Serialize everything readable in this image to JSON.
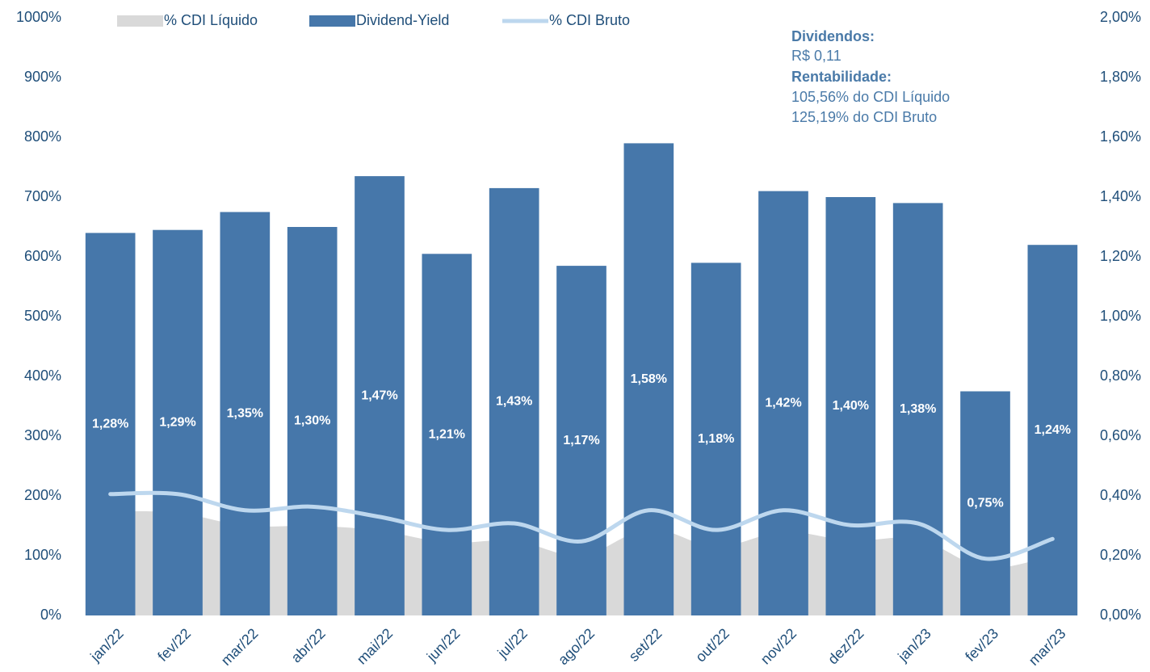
{
  "chart_data": {
    "type": "combo",
    "categories": [
      "jan/22",
      "fev/22",
      "mar/22",
      "abr/22",
      "mai/22",
      "jun/22",
      "jul/22",
      "ago/22",
      "set/22",
      "out/22",
      "nov/22",
      "dez/22",
      "jan/23",
      "fev/23",
      "mar/23"
    ],
    "series": [
      {
        "name": "% CDI Líquido",
        "type": "area",
        "color": "#d9d9d9",
        "values": [
          174,
          172,
          150,
          150,
          142,
          122,
          125,
          100,
          145,
          115,
          140,
          125,
          128,
          80,
          100
        ]
      },
      {
        "name": "Dividend-Yield",
        "type": "bar",
        "axis": "y2",
        "color": "#4677aa",
        "values": [
          1.28,
          1.29,
          1.35,
          1.3,
          1.47,
          1.21,
          1.43,
          1.17,
          1.58,
          1.18,
          1.42,
          1.4,
          1.38,
          0.75,
          1.24
        ],
        "value_labels": [
          "1,28%",
          "1,29%",
          "1,35%",
          "1,30%",
          "1,47%",
          "1,21%",
          "1,43%",
          "1,17%",
          "1,58%",
          "1,18%",
          "1,42%",
          "1,40%",
          "1,38%",
          "0,75%",
          "1,24%"
        ]
      },
      {
        "name": "% CDI Bruto",
        "type": "line",
        "color": "#bdd7ee",
        "values": [
          203,
          203,
          176,
          182,
          165,
          143,
          154,
          124,
          176,
          143,
          176,
          151,
          154,
          95,
          128
        ]
      }
    ],
    "ylim": [
      0,
      1000
    ],
    "yticks": [
      {
        "value": 0,
        "label": "0%"
      },
      {
        "value": 100,
        "label": "100%"
      },
      {
        "value": 200,
        "label": "200%"
      },
      {
        "value": 300,
        "label": "300%"
      },
      {
        "value": 400,
        "label": "400%"
      },
      {
        "value": 500,
        "label": "500%"
      },
      {
        "value": 600,
        "label": "600%"
      },
      {
        "value": 700,
        "label": "700%"
      },
      {
        "value": 800,
        "label": "800%"
      },
      {
        "value": 900,
        "label": "900%"
      },
      {
        "value": 1000,
        "label": "1000%"
      }
    ],
    "y2lim": [
      0,
      2
    ],
    "y2ticks": [
      {
        "value": 0,
        "label": "0,00%"
      },
      {
        "value": 0.2,
        "label": "0,20%"
      },
      {
        "value": 0.4,
        "label": "0,40%"
      },
      {
        "value": 0.6,
        "label": "0,60%"
      },
      {
        "value": 0.8,
        "label": "0,80%"
      },
      {
        "value": 1,
        "label": "1,00%"
      },
      {
        "value": 1.2,
        "label": "1,20%"
      },
      {
        "value": 1.4,
        "label": "1,40%"
      },
      {
        "value": 1.6,
        "label": "1,60%"
      },
      {
        "value": 1.8,
        "label": "1,80%"
      },
      {
        "value": 2,
        "label": "2,00%"
      }
    ],
    "annotations": [
      "Dividendos:",
      "R$ 0,11",
      "Rentabilidade:",
      "105,56% do CDI Líquido",
      "125,19% do CDI Bruto"
    ]
  }
}
